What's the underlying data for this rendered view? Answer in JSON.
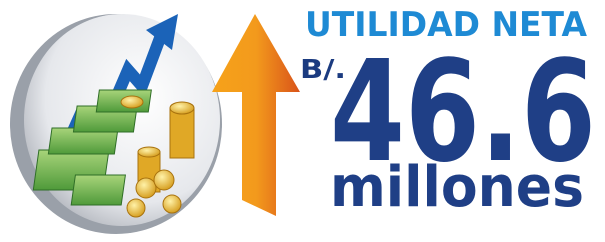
{
  "headline": {
    "title": "UTILIDAD NETA",
    "currency": "B/.",
    "amount": "46.6",
    "unit": "millones"
  }
}
